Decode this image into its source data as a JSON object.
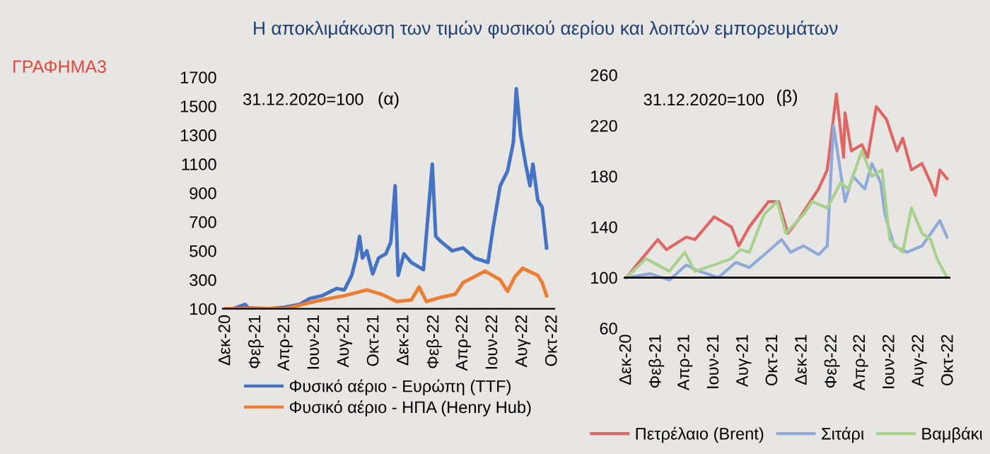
{
  "chart_data": [
    {
      "type": "line",
      "title": "(α)",
      "subtitle": "Η αποκλιμάκωση των τιμών φυσικού αερίου και λοιπών εμπορευμάτων",
      "annotations": [
        "31.12.2020=100",
        "ΓΡΑΦΗΜΑ3"
      ],
      "xlim": [
        "2020-11-25",
        "2022-10-05"
      ],
      "ylim": [
        100,
        1700
      ],
      "yticks": [
        100,
        300,
        500,
        700,
        900,
        1100,
        1300,
        1500,
        1700
      ],
      "xticks": [
        {
          "value": "2020-12-01",
          "label": "Δεκ-20"
        },
        {
          "value": "2021-02-01",
          "label": "Φεβ-21"
        },
        {
          "value": "2021-04-01",
          "label": "Απρ-21"
        },
        {
          "value": "2021-06-01",
          "label": "Ιουν-21"
        },
        {
          "value": "2021-08-01",
          "label": "Αυγ-21"
        },
        {
          "value": "2021-10-01",
          "label": "Οκτ-21"
        },
        {
          "value": "2021-12-01",
          "label": "Δεκ-21"
        },
        {
          "value": "2022-02-01",
          "label": "Φεβ-22"
        },
        {
          "value": "2022-04-01",
          "label": "Απρ-22"
        },
        {
          "value": "2022-06-01",
          "label": "Ιουν-22"
        },
        {
          "value": "2022-08-01",
          "label": "Αυγ-22"
        },
        {
          "value": "2022-10-01",
          "label": "Οκτ-22"
        }
      ],
      "grid": false,
      "legend": "bottom",
      "marker": "none",
      "line_style": "solid",
      "series": [
        {
          "name": "Φυσικό αέριο - Ευρώπη (TTF)",
          "color": "#4472c4",
          "x": [
            "2020-12-01",
            "2020-12-16",
            "2021-01-10",
            "2021-01-16",
            "2021-03-01",
            "2021-04-01",
            "2021-05-01",
            "2021-05-22",
            "2021-06-16",
            "2021-07-16",
            "2021-08-01",
            "2021-08-16",
            "2021-08-25",
            "2021-09-01",
            "2021-09-07",
            "2021-09-16",
            "2021-09-28",
            "2021-10-10",
            "2021-10-25",
            "2021-11-04",
            "2021-11-13",
            "2021-11-19",
            "2021-12-01",
            "2021-12-16",
            "2022-01-10",
            "2022-01-28",
            "2022-02-04",
            "2022-02-16",
            "2022-03-10",
            "2022-04-01",
            "2022-04-25",
            "2022-05-22",
            "2022-06-01",
            "2022-06-16",
            "2022-07-01",
            "2022-07-13",
            "2022-07-19",
            "2022-07-28",
            "2022-08-07",
            "2022-08-16",
            "2022-08-22",
            "2022-09-01",
            "2022-09-10",
            "2022-09-19"
          ],
          "values": [
            100,
            100,
            130,
            105,
            100,
            110,
            130,
            170,
            190,
            240,
            230,
            330,
            450,
            600,
            450,
            500,
            340,
            450,
            480,
            560,
            950,
            330,
            480,
            420,
            370,
            1100,
            600,
            560,
            500,
            520,
            450,
            420,
            650,
            950,
            1050,
            1250,
            1620,
            1300,
            1100,
            950,
            1100,
            850,
            800,
            520
          ]
        },
        {
          "name": "Φυσικό αέριο - ΗΠΑ (Henry Hub)",
          "color": "#ed7d31",
          "x": [
            "2020-12-01",
            "2021-04-01",
            "2021-06-01",
            "2021-08-01",
            "2021-09-16",
            "2021-10-16",
            "2021-11-16",
            "2021-12-16",
            "2022-01-01",
            "2022-01-16",
            "2022-02-16",
            "2022-03-16",
            "2022-04-01",
            "2022-05-16",
            "2022-06-16",
            "2022-07-01",
            "2022-07-16",
            "2022-08-01",
            "2022-09-01",
            "2022-09-10",
            "2022-09-19"
          ],
          "values": [
            100,
            100,
            150,
            190,
            230,
            200,
            150,
            160,
            250,
            150,
            180,
            200,
            280,
            360,
            300,
            220,
            320,
            380,
            330,
            280,
            190
          ]
        }
      ]
    },
    {
      "type": "line",
      "title": "(β)",
      "annotations": [
        "31.12.2020=100"
      ],
      "xlim": [
        "2020-11-25",
        "2022-10-05"
      ],
      "ylim": [
        60,
        260
      ],
      "yticks": [
        60,
        100,
        140,
        180,
        220,
        260
      ],
      "xticks": [
        {
          "value": "2020-12-01",
          "label": "Δεκ-20"
        },
        {
          "value": "2021-02-01",
          "label": "Φεβ-21"
        },
        {
          "value": "2021-04-01",
          "label": "Απρ-21"
        },
        {
          "value": "2021-06-01",
          "label": "Ιουν-21"
        },
        {
          "value": "2021-08-01",
          "label": "Αυγ-21"
        },
        {
          "value": "2021-10-01",
          "label": "Οκτ-21"
        },
        {
          "value": "2021-12-01",
          "label": "Δεκ-21"
        },
        {
          "value": "2022-02-01",
          "label": "Φεβ-22"
        },
        {
          "value": "2022-04-01",
          "label": "Απρ-22"
        },
        {
          "value": "2022-06-01",
          "label": "Ιουν-22"
        },
        {
          "value": "2022-08-01",
          "label": "Αυγ-22"
        },
        {
          "value": "2022-10-01",
          "label": "Οκτ-22"
        }
      ],
      "ref_lines": [
        {
          "axis": "y",
          "value": 100,
          "color": "#000000"
        }
      ],
      "grid": false,
      "legend": "bottom",
      "marker": "none",
      "line_style": "solid",
      "series": [
        {
          "name": "Πετρέλαιο (Brent)",
          "color": "#e06666",
          "x": [
            "2020-12-01",
            "2020-12-22",
            "2021-02-04",
            "2021-02-22",
            "2021-04-04",
            "2021-04-22",
            "2021-06-01",
            "2021-07-07",
            "2021-07-22",
            "2021-08-13",
            "2021-09-22",
            "2021-10-13",
            "2021-11-01",
            "2021-11-22",
            "2022-01-04",
            "2022-01-22",
            "2022-02-10",
            "2022-02-25",
            "2022-02-28",
            "2022-03-13",
            "2022-04-04",
            "2022-04-16",
            "2022-05-04",
            "2022-05-25",
            "2022-06-16",
            "2022-06-28",
            "2022-07-16",
            "2022-08-07",
            "2022-08-25",
            "2022-09-04",
            "2022-09-13",
            "2022-09-28"
          ],
          "values": [
            100,
            110,
            130,
            122,
            132,
            130,
            148,
            140,
            125,
            140,
            160,
            160,
            135,
            145,
            170,
            185,
            245,
            195,
            230,
            200,
            205,
            195,
            235,
            225,
            200,
            210,
            185,
            190,
            175,
            165,
            185,
            178
          ]
        },
        {
          "name": "Σιτάρι",
          "color": "#8eaadb",
          "x": [
            "2020-12-01",
            "2021-01-19",
            "2021-02-28",
            "2021-04-04",
            "2021-05-01",
            "2021-06-10",
            "2021-07-16",
            "2021-08-13",
            "2021-09-13",
            "2021-10-19",
            "2021-11-07",
            "2021-12-04",
            "2022-01-04",
            "2022-01-22",
            "2022-02-04",
            "2022-02-28",
            "2022-03-16",
            "2022-04-10",
            "2022-04-25",
            "2022-05-13",
            "2022-05-22",
            "2022-06-10",
            "2022-07-07",
            "2022-08-07",
            "2022-09-04",
            "2022-09-13",
            "2022-09-28"
          ],
          "values": [
            100,
            103,
            98,
            110,
            105,
            100,
            112,
            108,
            118,
            130,
            120,
            125,
            118,
            125,
            220,
            160,
            180,
            170,
            190,
            175,
            150,
            125,
            120,
            125,
            140,
            145,
            132
          ]
        },
        {
          "name": "Βαμβάκι",
          "color": "#a9d18e",
          "x": [
            "2020-12-01",
            "2021-01-10",
            "2021-02-28",
            "2021-04-01",
            "2021-04-22",
            "2021-06-01",
            "2021-07-07",
            "2021-07-25",
            "2021-08-13",
            "2021-09-13",
            "2021-10-10",
            "2021-10-28",
            "2021-12-04",
            "2021-12-22",
            "2022-01-22",
            "2022-02-19",
            "2022-03-07",
            "2022-04-04",
            "2022-04-25",
            "2022-05-16",
            "2022-06-01",
            "2022-06-28",
            "2022-07-16",
            "2022-08-07",
            "2022-08-25",
            "2022-09-07",
            "2022-09-28"
          ],
          "values": [
            100,
            115,
            105,
            120,
            105,
            110,
            115,
            122,
            120,
            150,
            160,
            135,
            150,
            160,
            155,
            175,
            170,
            200,
            180,
            185,
            130,
            120,
            155,
            135,
            130,
            115,
            100
          ]
        }
      ]
    }
  ]
}
